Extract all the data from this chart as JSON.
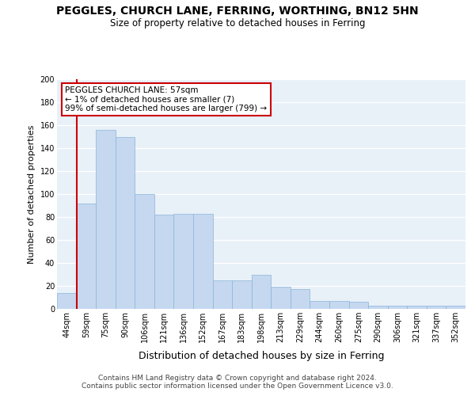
{
  "title": "PEGGLES, CHURCH LANE, FERRING, WORTHING, BN12 5HN",
  "subtitle": "Size of property relative to detached houses in Ferring",
  "xlabel": "Distribution of detached houses by size in Ferring",
  "ylabel": "Number of detached properties",
  "categories": [
    "44sqm",
    "59sqm",
    "75sqm",
    "90sqm",
    "106sqm",
    "121sqm",
    "136sqm",
    "152sqm",
    "167sqm",
    "183sqm",
    "198sqm",
    "213sqm",
    "229sqm",
    "244sqm",
    "260sqm",
    "275sqm",
    "290sqm",
    "306sqm",
    "321sqm",
    "337sqm",
    "352sqm"
  ],
  "values": [
    14,
    92,
    156,
    150,
    100,
    82,
    83,
    83,
    25,
    25,
    30,
    19,
    17,
    7,
    7,
    6,
    3,
    3,
    3,
    3,
    3
  ],
  "bar_color": "#c5d8f0",
  "bar_edge_color": "#8ab4d8",
  "background_color": "#e8f0f8",
  "grid_color": "#ffffff",
  "annotation_text": "PEGGLES CHURCH LANE: 57sqm\n← 1% of detached houses are smaller (7)\n99% of semi-detached houses are larger (799) →",
  "annotation_box_color": "#ffffff",
  "annotation_box_edge": "#cc0000",
  "marker_line_color": "#cc0000",
  "ylim": [
    0,
    200
  ],
  "yticks": [
    0,
    20,
    40,
    60,
    80,
    100,
    120,
    140,
    160,
    180,
    200
  ],
  "footer1": "Contains HM Land Registry data © Crown copyright and database right 2024.",
  "footer2": "Contains public sector information licensed under the Open Government Licence v3.0.",
  "title_fontsize": 10,
  "subtitle_fontsize": 8.5,
  "xlabel_fontsize": 9,
  "ylabel_fontsize": 8,
  "tick_fontsize": 7,
  "annotation_fontsize": 7.5,
  "footer_fontsize": 6.5
}
